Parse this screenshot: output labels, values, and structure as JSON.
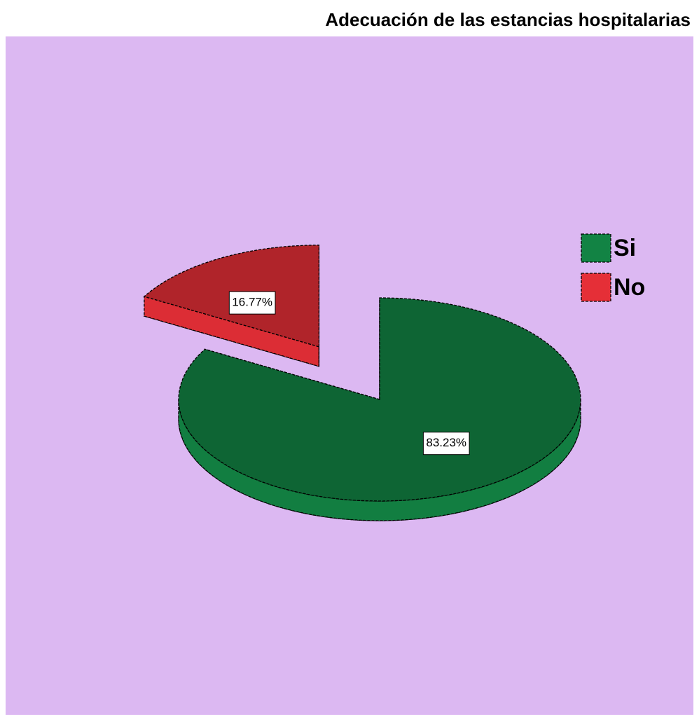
{
  "chart_data": {
    "type": "pie",
    "title": "Adecuación de las estancias hospitalarias",
    "categories": [
      "Si",
      "No"
    ],
    "values": [
      83.23,
      16.77
    ],
    "value_labels": [
      "83.23%",
      "16.77%"
    ],
    "colors": [
      "#0e6534",
      "#b0242a"
    ],
    "exploded": [
      false,
      true
    ],
    "legend": "right"
  }
}
